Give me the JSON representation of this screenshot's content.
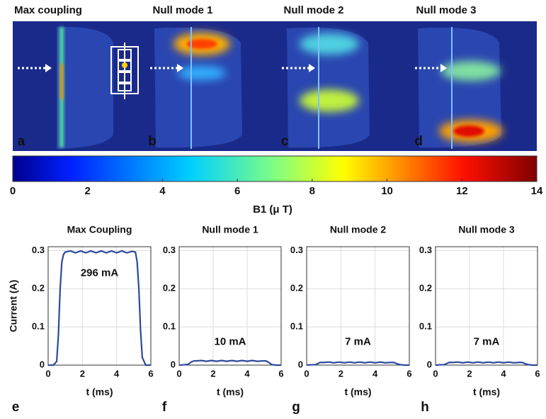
{
  "maps": {
    "titles": [
      "Max coupling",
      "Null mode 1",
      "Null mode 2",
      "Null mode 3"
    ],
    "letters": [
      "a",
      "b",
      "c",
      "d"
    ]
  },
  "colorbar": {
    "label": "B1 (μ T)",
    "lim": [
      0,
      14
    ],
    "ticks": [
      0,
      2,
      4,
      6,
      8,
      10,
      12,
      14
    ]
  },
  "chart_data": [
    {
      "type": "line",
      "title": "Max Coupling",
      "letter": "e",
      "x_label": "t (ms)",
      "y_label": "Current (A)",
      "annotation": "296 mA",
      "x": [
        0,
        0.3,
        0.5,
        0.6,
        0.7,
        0.8,
        0.9,
        1.0,
        1.3,
        1.6,
        1.9,
        2.2,
        2.5,
        2.8,
        3.1,
        3.4,
        3.7,
        4.0,
        4.3,
        4.6,
        4.9,
        5.1,
        5.2,
        5.3,
        5.4,
        5.5,
        5.7,
        6
      ],
      "series": [
        {
          "color": "#2b4a9b",
          "values": [
            0,
            0,
            0.01,
            0.08,
            0.2,
            0.27,
            0.29,
            0.296,
            0.299,
            0.294,
            0.299,
            0.294,
            0.299,
            0.294,
            0.299,
            0.294,
            0.299,
            0.294,
            0.299,
            0.294,
            0.298,
            0.296,
            0.27,
            0.2,
            0.09,
            0.02,
            0,
            0
          ]
        }
      ],
      "xlim": [
        0,
        6
      ],
      "ylim": [
        0,
        0.31
      ],
      "xticks": [
        0,
        2,
        4,
        6
      ],
      "yticks": [
        0,
        0.1,
        0.2,
        0.3
      ],
      "grid": true
    },
    {
      "type": "line",
      "title": "Null mode 1",
      "letter": "f",
      "x_label": "t (ms)",
      "annotation": "10 mA",
      "x": [
        0,
        0.3,
        0.5,
        0.6,
        0.7,
        0.8,
        0.9,
        1.0,
        1.3,
        1.6,
        1.9,
        2.2,
        2.5,
        2.8,
        3.1,
        3.4,
        3.7,
        4.0,
        4.3,
        4.6,
        4.9,
        5.1,
        5.2,
        5.3,
        5.4,
        5.5,
        5.7,
        6
      ],
      "series": [
        {
          "color": "#2b4a9b",
          "values": [
            0,
            0.001,
            0.002,
            0.004,
            0.008,
            0.01,
            0.011,
            0.011,
            0.012,
            0.01,
            0.012,
            0.01,
            0.012,
            0.01,
            0.012,
            0.01,
            0.012,
            0.01,
            0.012,
            0.01,
            0.011,
            0.011,
            0.009,
            0.006,
            0.003,
            0.001,
            0,
            0
          ]
        }
      ],
      "xlim": [
        0,
        6
      ],
      "ylim": [
        0,
        0.31
      ],
      "xticks": [
        0,
        2,
        4,
        6
      ],
      "yticks": [
        0,
        0.1,
        0.2,
        0.3
      ],
      "grid": true
    },
    {
      "type": "line",
      "title": "Null mode 2",
      "letter": "g",
      "x_label": "t (ms)",
      "annotation": "7 mA",
      "x": [
        0,
        0.3,
        0.5,
        0.6,
        0.7,
        0.8,
        0.9,
        1.0,
        1.3,
        1.6,
        1.9,
        2.2,
        2.5,
        2.8,
        3.1,
        3.4,
        3.7,
        4.0,
        4.3,
        4.6,
        4.9,
        5.1,
        5.2,
        5.3,
        5.4,
        5.5,
        5.7,
        6
      ],
      "series": [
        {
          "color": "#2b4a9b",
          "values": [
            0,
            0.001,
            0.001,
            0.003,
            0.005,
            0.007,
            0.007,
            0.007,
            0.008,
            0.006,
            0.008,
            0.006,
            0.008,
            0.006,
            0.008,
            0.006,
            0.008,
            0.006,
            0.008,
            0.006,
            0.007,
            0.007,
            0.005,
            0.003,
            0.002,
            0.001,
            0,
            0
          ]
        }
      ],
      "xlim": [
        0,
        6
      ],
      "ylim": [
        0,
        0.31
      ],
      "xticks": [
        0,
        2,
        4,
        6
      ],
      "yticks": [
        0,
        0.1,
        0.2,
        0.3
      ],
      "grid": true
    },
    {
      "type": "line",
      "title": "Null mode 3",
      "letter": "h",
      "x_label": "t (ms)",
      "annotation": "7 mA",
      "x": [
        0,
        0.3,
        0.5,
        0.6,
        0.7,
        0.8,
        0.9,
        1.0,
        1.3,
        1.6,
        1.9,
        2.2,
        2.5,
        2.8,
        3.1,
        3.4,
        3.7,
        4.0,
        4.3,
        4.6,
        4.9,
        5.1,
        5.2,
        5.3,
        5.4,
        5.5,
        5.7,
        6
      ],
      "series": [
        {
          "color": "#2b4a9b",
          "values": [
            0,
            0.001,
            0.001,
            0.003,
            0.005,
            0.007,
            0.007,
            0.007,
            0.008,
            0.006,
            0.008,
            0.006,
            0.008,
            0.006,
            0.008,
            0.006,
            0.008,
            0.006,
            0.008,
            0.006,
            0.007,
            0.007,
            0.005,
            0.003,
            0.002,
            0.001,
            0,
            0
          ]
        }
      ],
      "xlim": [
        0,
        6
      ],
      "ylim": [
        0,
        0.31
      ],
      "xticks": [
        0,
        2,
        4,
        6
      ],
      "yticks": [
        0,
        0.1,
        0.2,
        0.3
      ],
      "grid": true
    }
  ]
}
